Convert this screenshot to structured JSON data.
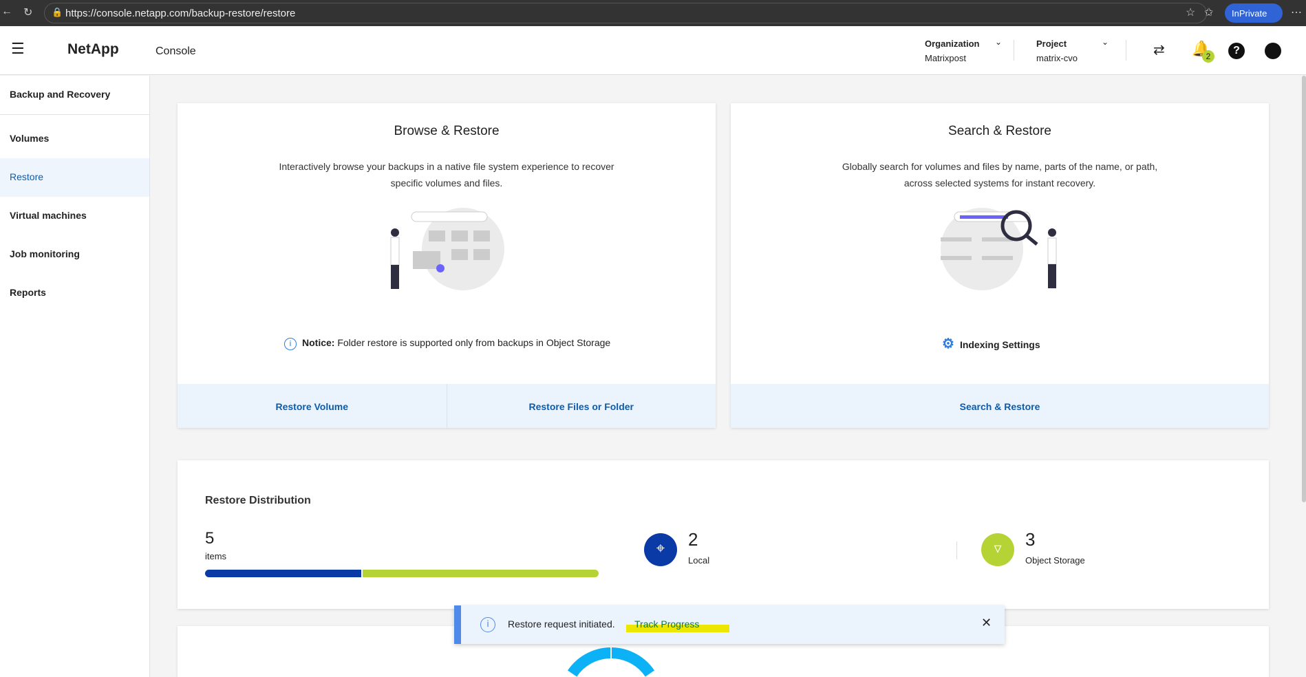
{
  "browser": {
    "url": "https://console.netapp.com/backup-restore/restore",
    "profile": "InPrivate"
  },
  "header": {
    "logo": "NetApp",
    "product": "Console",
    "org_label": "Organization",
    "org_value": "Matrixpost",
    "project_label": "Project",
    "project_value": "matrix-cvo",
    "notification_count": "2"
  },
  "sidebar": {
    "items": [
      {
        "label": "Backup and Recovery"
      },
      {
        "label": "Volumes"
      },
      {
        "label": "Restore",
        "active": true
      },
      {
        "label": "Virtual machines"
      },
      {
        "label": "Job monitoring"
      },
      {
        "label": "Reports"
      }
    ]
  },
  "browse": {
    "title": "Browse & Restore",
    "desc1": "Interactively browse your backups in a native file system experience to recover",
    "desc2": "specific volumes and files.",
    "notice_label": "Notice:",
    "notice_text": " Folder restore is supported only from backups in Object Storage",
    "btn_volume": "Restore Volume",
    "btn_files": "Restore Files or Folder"
  },
  "search": {
    "title": "Search & Restore",
    "desc1": "Globally search for volumes and files by name, parts of the name, or path,",
    "desc2": "across selected systems for instant recovery.",
    "indexing": "Indexing Settings",
    "btn": "Search & Restore"
  },
  "distribution": {
    "title": "Restore Distribution",
    "total": "5",
    "total_label": "items",
    "local_count": "2",
    "local_label": "Local",
    "object_count": "3",
    "object_label": "Object Storage",
    "local_fraction": 0.4,
    "object_fraction": 0.6,
    "colors": {
      "local": "#0a3aa6",
      "object": "#b5d334"
    }
  },
  "toast": {
    "message": "Restore request initiated.",
    "link": "Track Progress"
  }
}
